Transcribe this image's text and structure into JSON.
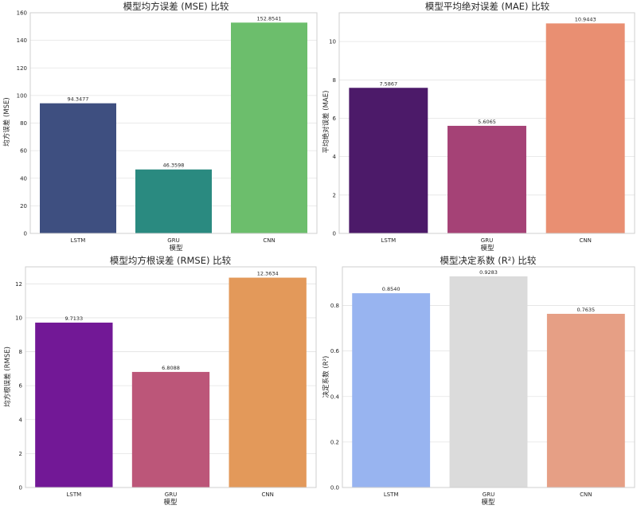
{
  "chart_data": [
    {
      "type": "bar",
      "title": "模型均方误差 (MSE) 比较",
      "xlabel": "模型",
      "ylabel": "均方误差 (MSE)",
      "categories": [
        "LSTM",
        "GRU",
        "CNN"
      ],
      "values": [
        94.3477,
        46.3598,
        152.8541
      ],
      "value_labels": [
        "94.3477",
        "46.3598",
        "152.8541"
      ],
      "ylim": [
        0,
        160
      ],
      "yticks": [
        0,
        20,
        40,
        60,
        80,
        100,
        120,
        140,
        160
      ],
      "ytick_labels": [
        "0",
        "20",
        "40",
        "60",
        "80",
        "100",
        "120",
        "140",
        "160"
      ],
      "colors": [
        "#3e4f80",
        "#2a8a80",
        "#6cbe6c"
      ],
      "grid": true
    },
    {
      "type": "bar",
      "title": "模型平均绝对误差 (MAE) 比较",
      "xlabel": "模型",
      "ylabel": "平均绝对误差 (MAE)",
      "categories": [
        "LSTM",
        "GRU",
        "CNN"
      ],
      "values": [
        7.5867,
        5.6065,
        10.9443
      ],
      "value_labels": [
        "7.5867",
        "5.6065",
        "10.9443"
      ],
      "ylim": [
        0,
        11.5
      ],
      "yticks": [
        0,
        2,
        4,
        6,
        8,
        10
      ],
      "ytick_labels": [
        "0",
        "2",
        "4",
        "6",
        "8",
        "10"
      ],
      "colors": [
        "#4c1a69",
        "#a54276",
        "#e98f72"
      ],
      "grid": true
    },
    {
      "type": "bar",
      "title": "模型均方根误差 (RMSE) 比较",
      "xlabel": "模型",
      "ylabel": "均方根误差 (RMSE)",
      "categories": [
        "LSTM",
        "GRU",
        "CNN"
      ],
      "values": [
        9.7133,
        6.8088,
        12.3634
      ],
      "value_labels": [
        "9.7133",
        "6.8088",
        "12.3634"
      ],
      "ylim": [
        0,
        13
      ],
      "yticks": [
        0,
        2,
        4,
        6,
        8,
        10,
        12
      ],
      "ytick_labels": [
        "0",
        "2",
        "4",
        "6",
        "8",
        "10",
        "12"
      ],
      "colors": [
        "#721896",
        "#bc5679",
        "#e3995a"
      ],
      "grid": true
    },
    {
      "type": "bar",
      "title": "模型决定系数 (R²) 比较",
      "xlabel": "模型",
      "ylabel": "决定系数 (R²)",
      "categories": [
        "LSTM",
        "GRU",
        "CNN"
      ],
      "values": [
        0.854,
        0.9283,
        0.7635
      ],
      "value_labels": [
        "0.8540",
        "0.9283",
        "0.7635"
      ],
      "ylim": [
        0,
        0.97
      ],
      "yticks": [
        0,
        0.2,
        0.4,
        0.6,
        0.8
      ],
      "ytick_labels": [
        "0.0",
        "0.2",
        "0.4",
        "0.6",
        "0.8"
      ],
      "colors": [
        "#98b4f0",
        "#dbdbdb",
        "#e69f85"
      ],
      "grid": true
    }
  ]
}
